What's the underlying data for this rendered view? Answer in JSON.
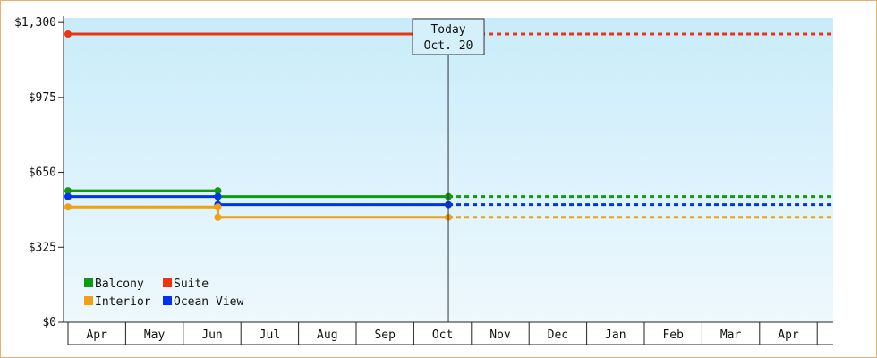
{
  "chart_data": {
    "type": "line",
    "title": "",
    "xlabel": "",
    "ylabel": "",
    "x_categories": [
      "Apr",
      "May",
      "Jun",
      "Jul",
      "Aug",
      "Sep",
      "Oct",
      "Nov",
      "Dec",
      "Jan",
      "Feb",
      "Mar",
      "Apr"
    ],
    "y_ticks": [
      {
        "value": 0,
        "label": "$0"
      },
      {
        "value": 325,
        "label": "$325"
      },
      {
        "value": 650,
        "label": "$650"
      },
      {
        "value": 975,
        "label": "$975"
      },
      {
        "value": 1300,
        "label": "$1,300"
      }
    ],
    "ylim": [
      0,
      1320
    ],
    "today_marker": {
      "line1": "Today",
      "line2": "Oct. 20",
      "x_index": 6.6
    },
    "series": [
      {
        "name": "Suite",
        "color": "#ee3311",
        "points": [
          {
            "x": 0,
            "y": 1250
          },
          {
            "x": 6.6,
            "y": 1250
          }
        ],
        "projection_y": 1250
      },
      {
        "name": "Balcony",
        "color": "#119911",
        "points": [
          {
            "x": 0,
            "y": 570
          },
          {
            "x": 2.6,
            "y": 570
          },
          {
            "x": 2.6,
            "y": 545
          },
          {
            "x": 6.6,
            "y": 545
          }
        ],
        "projection_y": 545
      },
      {
        "name": "Ocean View",
        "color": "#0033ee",
        "points": [
          {
            "x": 0,
            "y": 545
          },
          {
            "x": 2.6,
            "y": 545
          },
          {
            "x": 2.6,
            "y": 510
          },
          {
            "x": 6.6,
            "y": 510
          }
        ],
        "projection_y": 510
      },
      {
        "name": "Interior",
        "color": "#f0a010",
        "points": [
          {
            "x": 0,
            "y": 500
          },
          {
            "x": 2.6,
            "y": 500
          },
          {
            "x": 2.6,
            "y": 455
          },
          {
            "x": 6.6,
            "y": 455
          }
        ],
        "projection_y": 455
      }
    ],
    "legend": {
      "placement": "bottom-left",
      "items": [
        {
          "name": "Balcony",
          "color": "#119911"
        },
        {
          "name": "Suite",
          "color": "#ee3311"
        },
        {
          "name": "Interior",
          "color": "#f0a010"
        },
        {
          "name": "Ocean View",
          "color": "#0033ee"
        }
      ]
    },
    "grid": false
  }
}
